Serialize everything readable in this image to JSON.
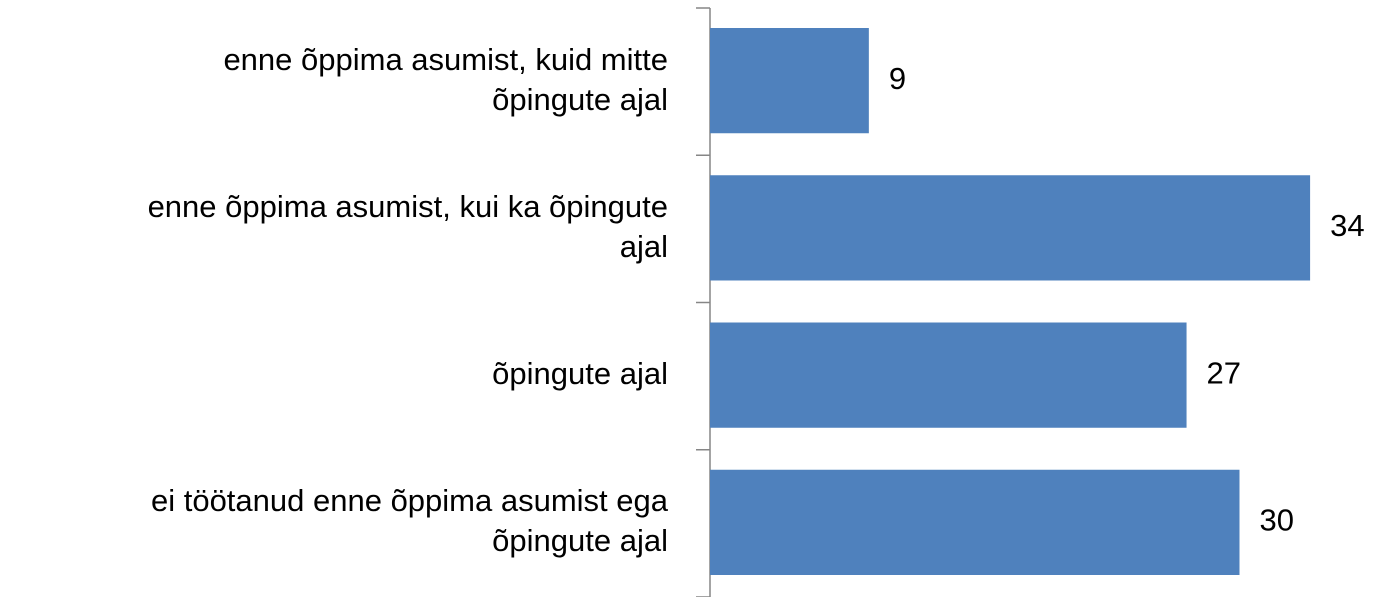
{
  "chart_data": {
    "type": "bar",
    "orientation": "horizontal",
    "categories": [
      "enne õppima asumist, kuid mitte\nõpingute ajal",
      "enne õppima asumist, kui ka õpingute\najal",
      "õpingute ajal",
      "ei töötanud enne õppima asumist ega\nõpingute ajal"
    ],
    "values": [
      9,
      34,
      27,
      30
    ],
    "color": "#4f81bd"
  }
}
